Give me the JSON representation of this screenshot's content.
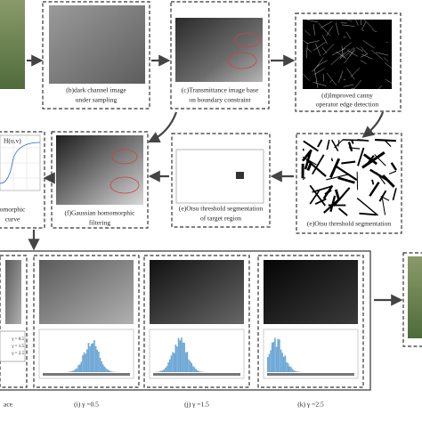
{
  "top_row": [
    {
      "caption": [
        "(b)dark channel image",
        "under sampling"
      ]
    },
    {
      "caption": [
        "(c)Transmittance image base",
        "on boundary constraint"
      ]
    },
    {
      "caption": [
        "(d)Improved canny",
        "operator edge detection"
      ]
    }
  ],
  "middle_row": [
    {
      "caption": [
        "omorphic",
        "curve"
      ],
      "plot_label": "H(u,v)"
    },
    {
      "caption": [
        "(f)Gaussian homomorphic",
        "filtering"
      ]
    },
    {
      "caption": [
        "(e)Otsu threshold segmentation",
        "of target region"
      ]
    },
    {
      "caption": [
        "(e)Otsu threshold segmentation"
      ]
    }
  ],
  "bottom_row": [
    {
      "caption": [
        "ace"
      ],
      "legend": [
        "γ = 0.5",
        "γ = 1.5",
        "γ = 2.5"
      ]
    },
    {
      "caption": [
        "(i) γ =0.5"
      ]
    },
    {
      "caption": [
        "(j) γ =1.5"
      ]
    },
    {
      "caption": [
        "(k) γ =2.5"
      ]
    }
  ]
}
